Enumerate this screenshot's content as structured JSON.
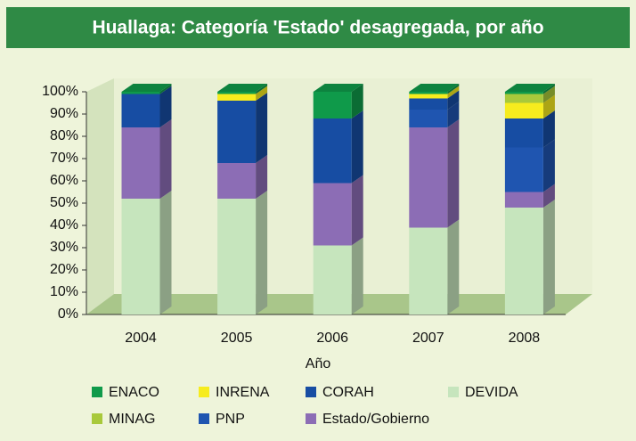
{
  "chart_data": {
    "type": "stacked_bar_3d",
    "title": "Huallaga: Categoría 'Estado' desagregada, por año",
    "xlabel": "Año",
    "categories": [
      "2004",
      "2005",
      "2006",
      "2007",
      "2008"
    ],
    "series": [
      {
        "name": "DEVIDA",
        "color": "#c6e5bd",
        "values": [
          52,
          52,
          31,
          39,
          48
        ]
      },
      {
        "name": "Estado/Gobierno",
        "color": "#8c6db5",
        "values": [
          32,
          16,
          28,
          45,
          7
        ]
      },
      {
        "name": "PNP",
        "color": "#1f55b0",
        "values": [
          0,
          0,
          0,
          8,
          20
        ]
      },
      {
        "name": "CORAH",
        "color": "#174da3",
        "values": [
          15,
          28,
          29,
          5,
          13
        ]
      },
      {
        "name": "INRENA",
        "color": "#f6ec1e",
        "values": [
          0,
          3,
          0,
          2,
          7
        ]
      },
      {
        "name": "MINAG",
        "color": "#a8c93b",
        "values": [
          0,
          0,
          0,
          0,
          4
        ]
      },
      {
        "name": "ENACO",
        "color": "#0f9a4a",
        "values": [
          1,
          1,
          12,
          1,
          1
        ]
      }
    ],
    "ylim": [
      0,
      100
    ],
    "yticks": [
      {
        "value": 0,
        "label": "0%"
      },
      {
        "value": 10,
        "label": "10%"
      },
      {
        "value": 20,
        "label": "20%"
      },
      {
        "value": 30,
        "label": "30%"
      },
      {
        "value": 40,
        "label": "40%"
      },
      {
        "value": 50,
        "label": "50%"
      },
      {
        "value": 60,
        "label": "60%"
      },
      {
        "value": 70,
        "label": "70%"
      },
      {
        "value": 80,
        "label": "80%"
      },
      {
        "value": 90,
        "label": "90%"
      },
      {
        "value": 100,
        "label": "100%"
      }
    ]
  }
}
